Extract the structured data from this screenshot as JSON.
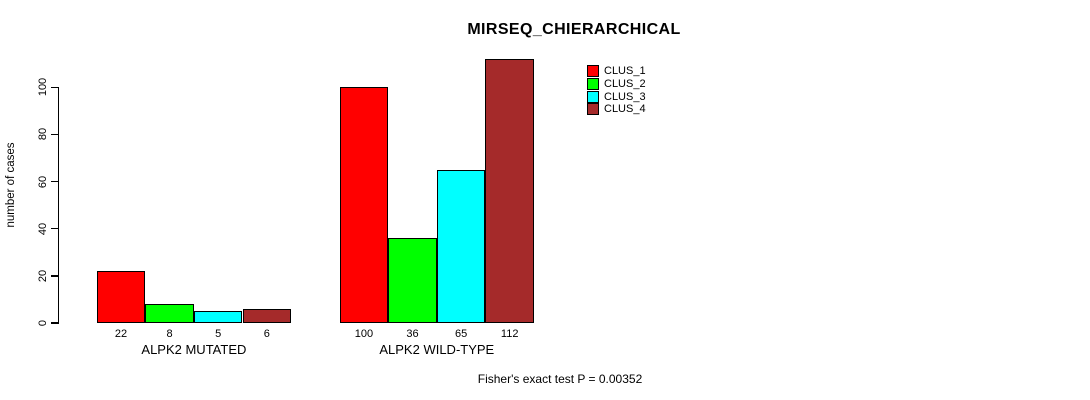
{
  "chart_data": {
    "type": "bar",
    "title": "MIRSEQ_CHIERARCHICAL",
    "ylabel": "number of cases",
    "xlabel": "",
    "ylim": [
      0,
      112
    ],
    "yticks": [
      0,
      20,
      40,
      60,
      80,
      100
    ],
    "grid": false,
    "legend_position": "top-right-inside",
    "categories": [
      "ALPK2 MUTATED",
      "ALPK2 WILD-TYPE"
    ],
    "series": [
      {
        "name": "CLUS_1",
        "color": "#FF0000",
        "values": [
          22,
          100
        ]
      },
      {
        "name": "CLUS_2",
        "color": "#00FF00",
        "values": [
          8,
          36
        ]
      },
      {
        "name": "CLUS_3",
        "color": "#00FFFF",
        "values": [
          5,
          65
        ]
      },
      {
        "name": "CLUS_4",
        "color": "#A52A2A",
        "values": [
          6,
          112
        ]
      }
    ],
    "bar_value_labels_shown": true,
    "annotation": "Fisher's exact test P = 0.00352"
  }
}
